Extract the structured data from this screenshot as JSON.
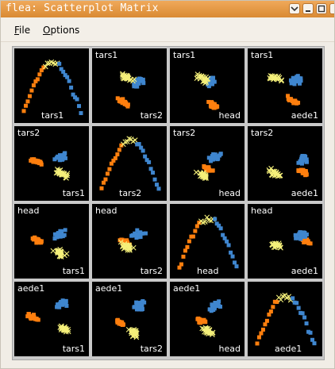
{
  "window": {
    "title": "flea: Scatterplot Matrix"
  },
  "menus": [
    {
      "label": "File",
      "mnemonic": "F",
      "rest": "ile"
    },
    {
      "label": "Options",
      "mnemonic": "O",
      "rest": "ptions"
    }
  ],
  "variables": [
    "tars1",
    "tars2",
    "head",
    "aede1"
  ],
  "cells": [
    [
      {
        "top": "",
        "bottom": "tars1"
      },
      {
        "top": "tars1",
        "bottom": "tars2"
      },
      {
        "top": "tars1",
        "bottom": "head"
      },
      {
        "top": "tars1",
        "bottom": "aede1"
      }
    ],
    [
      {
        "top": "tars2",
        "bottom": "tars1"
      },
      {
        "top": "",
        "bottom": "tars2"
      },
      {
        "top": "tars2",
        "bottom": "head"
      },
      {
        "top": "tars2",
        "bottom": "aede1"
      }
    ],
    [
      {
        "top": "head",
        "bottom": "tars1"
      },
      {
        "top": "head",
        "bottom": "tars2"
      },
      {
        "top": "",
        "bottom": "head"
      },
      {
        "top": "head",
        "bottom": "aede1"
      }
    ],
    [
      {
        "top": "aede1",
        "bottom": "tars1"
      },
      {
        "top": "aede1",
        "bottom": "tars2"
      },
      {
        "top": "aede1",
        "bottom": "head"
      },
      {
        "top": "",
        "bottom": "aede1"
      }
    ]
  ],
  "colors": {
    "group1": "#ff7f0e",
    "group2": "#3f86cf",
    "group3": "#f5f07a",
    "background": "#000000",
    "label": "#ffffff"
  },
  "icons": [
    "menu-arrow-icon",
    "minimize-icon",
    "maximize-icon",
    "close-icon"
  ]
}
